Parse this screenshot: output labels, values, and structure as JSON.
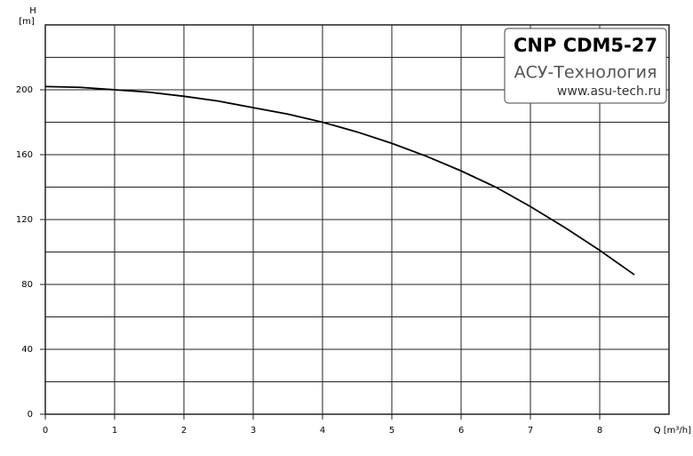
{
  "chart_data": {
    "type": "line",
    "y_label_top": "H",
    "y_label_unit": "[m]",
    "x_label": "Q [m³/h]",
    "badge": {
      "title": "CNP CDM5-27",
      "company": "АСУ-Технология",
      "url": "www.asu-tech.ru"
    },
    "x": [
      0,
      0.5,
      1,
      1.5,
      2,
      2.5,
      3,
      3.5,
      4,
      4.5,
      5,
      5.5,
      6,
      6.5,
      7,
      7.5,
      8,
      8.5
    ],
    "values": [
      202,
      201.5,
      200,
      198.5,
      196,
      193,
      189,
      185,
      180,
      174,
      167,
      159,
      150,
      140,
      128,
      115,
      101,
      86
    ],
    "color": "#000000",
    "xlim": [
      0,
      9
    ],
    "xticks": [
      0,
      1,
      2,
      3,
      4,
      5,
      6,
      7,
      8
    ],
    "ylim": [
      0,
      240
    ],
    "yticks": [
      0,
      40,
      80,
      120,
      160,
      200
    ],
    "minor_yticks": [
      20,
      60,
      100,
      140,
      180,
      220
    ],
    "grid": true
  }
}
